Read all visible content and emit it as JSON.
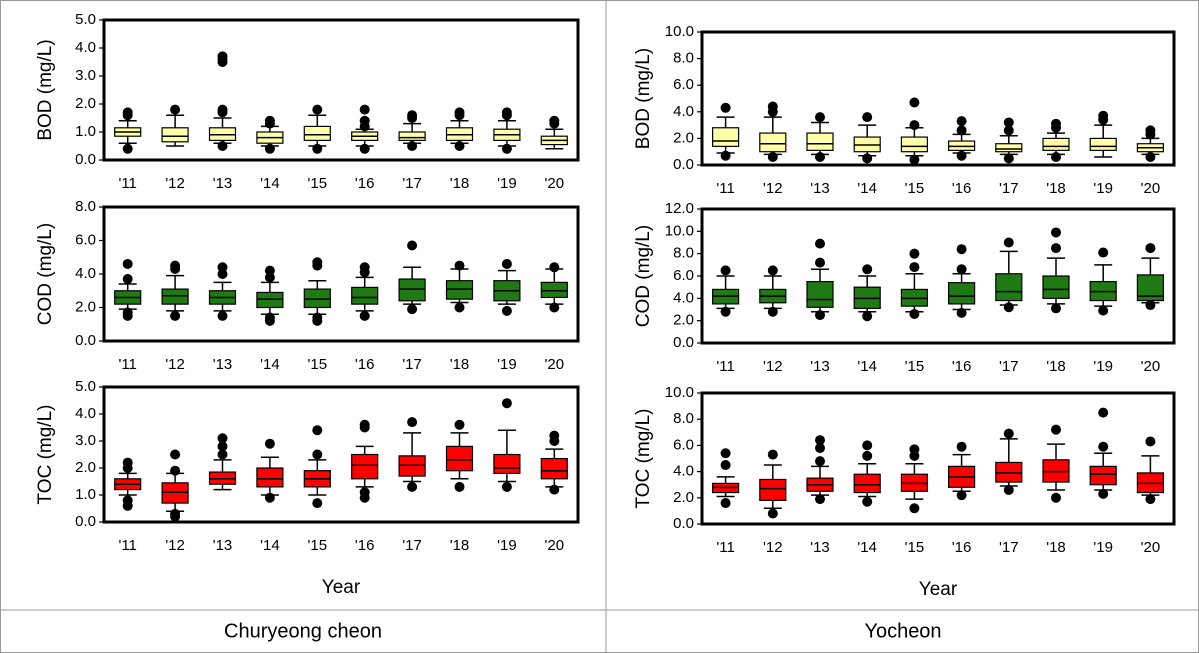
{
  "chart_data": [
    {
      "type": "box",
      "ylabel": "BOD (mg/L)",
      "color": "#ffffa8",
      "ylim": [
        0,
        5
      ],
      "yticks": [
        {
          "value": 0,
          "label": "0.0"
        },
        {
          "value": 1,
          "label": "1.0"
        },
        {
          "value": 2,
          "label": "2.0"
        },
        {
          "value": 3,
          "label": "3.0"
        },
        {
          "value": 4,
          "label": "4.0"
        },
        {
          "value": 5,
          "label": "5.0"
        }
      ],
      "categories": [
        "'11",
        "'12",
        "'13",
        "'14",
        "'15",
        "'16",
        "'17",
        "'18",
        "'19",
        "'20"
      ],
      "boxes": [
        {
          "whislo": 0.6,
          "q1": 0.85,
          "med": 1.0,
          "q3": 1.15,
          "whishi": 1.4,
          "fliers": [
            0.4,
            1.6,
            1.7
          ]
        },
        {
          "whislo": 0.5,
          "q1": 0.65,
          "med": 0.85,
          "q3": 1.15,
          "whishi": 1.6,
          "fliers": [
            1.8
          ]
        },
        {
          "whislo": 0.6,
          "q1": 0.7,
          "med": 0.9,
          "q3": 1.15,
          "whishi": 1.5,
          "fliers": [
            0.5,
            1.7,
            1.8,
            3.5,
            3.6,
            3.7
          ]
        },
        {
          "whislo": 0.5,
          "q1": 0.6,
          "med": 0.8,
          "q3": 1.0,
          "whishi": 1.2,
          "fliers": [
            0.4,
            1.3,
            1.4
          ]
        },
        {
          "whislo": 0.5,
          "q1": 0.7,
          "med": 0.9,
          "q3": 1.2,
          "whishi": 1.6,
          "fliers": [
            0.4,
            1.8
          ]
        },
        {
          "whislo": 0.5,
          "q1": 0.7,
          "med": 0.85,
          "q3": 1.0,
          "whishi": 1.1,
          "fliers": [
            0.4,
            1.2,
            1.4,
            1.8
          ]
        },
        {
          "whislo": 0.6,
          "q1": 0.7,
          "med": 0.8,
          "q3": 1.0,
          "whishi": 1.3,
          "fliers": [
            0.5,
            1.5,
            1.6
          ]
        },
        {
          "whislo": 0.6,
          "q1": 0.7,
          "med": 0.9,
          "q3": 1.15,
          "whishi": 1.4,
          "fliers": [
            0.5,
            1.6,
            1.7
          ]
        },
        {
          "whislo": 0.5,
          "q1": 0.7,
          "med": 0.9,
          "q3": 1.1,
          "whishi": 1.4,
          "fliers": [
            0.4,
            1.6,
            1.7
          ]
        },
        {
          "whislo": 0.4,
          "q1": 0.55,
          "med": 0.7,
          "q3": 0.85,
          "whishi": 1.1,
          "fliers": [
            1.3,
            1.4
          ]
        }
      ]
    },
    {
      "type": "box",
      "ylabel": "COD (mg/L)",
      "color": "#1f7a14",
      "ylim": [
        0,
        8
      ],
      "yticks": [
        {
          "value": 0,
          "label": "0.0"
        },
        {
          "value": 2,
          "label": "2.0"
        },
        {
          "value": 4,
          "label": "4.0"
        },
        {
          "value": 6,
          "label": "6.0"
        },
        {
          "value": 8,
          "label": "8.0"
        }
      ],
      "categories": [
        "'11",
        "'12",
        "'13",
        "'14",
        "'15",
        "'16",
        "'17",
        "'18",
        "'19",
        "'20"
      ],
      "boxes": [
        {
          "whislo": 1.9,
          "q1": 2.2,
          "med": 2.6,
          "q3": 3.0,
          "whishi": 3.4,
          "fliers": [
            1.5,
            1.7,
            3.7,
            4.6
          ]
        },
        {
          "whislo": 1.8,
          "q1": 2.2,
          "med": 2.7,
          "q3": 3.1,
          "whishi": 3.9,
          "fliers": [
            1.5,
            4.3,
            4.5
          ]
        },
        {
          "whislo": 1.8,
          "q1": 2.2,
          "med": 2.6,
          "q3": 3.0,
          "whishi": 3.5,
          "fliers": [
            1.5,
            4.0,
            4.4
          ]
        },
        {
          "whislo": 1.6,
          "q1": 2.0,
          "med": 2.5,
          "q3": 2.9,
          "whishi": 3.5,
          "fliers": [
            1.2,
            1.4,
            3.8,
            4.2
          ]
        },
        {
          "whislo": 1.6,
          "q1": 2.0,
          "med": 2.5,
          "q3": 3.1,
          "whishi": 3.6,
          "fliers": [
            1.2,
            1.4,
            4.5,
            4.7
          ]
        },
        {
          "whislo": 1.8,
          "q1": 2.2,
          "med": 2.6,
          "q3": 3.2,
          "whishi": 3.8,
          "fliers": [
            1.5,
            4.1,
            4.4
          ]
        },
        {
          "whislo": 2.2,
          "q1": 2.4,
          "med": 3.1,
          "q3": 3.7,
          "whishi": 4.4,
          "fliers": [
            1.9,
            5.7
          ]
        },
        {
          "whislo": 2.3,
          "q1": 2.5,
          "med": 3.1,
          "q3": 3.6,
          "whishi": 4.3,
          "fliers": [
            2.0,
            4.5
          ]
        },
        {
          "whislo": 2.2,
          "q1": 2.4,
          "med": 3.0,
          "q3": 3.6,
          "whishi": 4.2,
          "fliers": [
            1.8,
            4.6
          ]
        },
        {
          "whislo": 2.2,
          "q1": 2.6,
          "med": 3.0,
          "q3": 3.5,
          "whishi": 4.3,
          "fliers": [
            2.0,
            4.4
          ]
        }
      ]
    },
    {
      "type": "box",
      "ylabel": "TOC (mg/L)",
      "xlabel": "Year",
      "color": "#ff0000",
      "ylim": [
        0,
        5
      ],
      "yticks": [
        {
          "value": 0,
          "label": "0.0"
        },
        {
          "value": 1,
          "label": "1.0"
        },
        {
          "value": 2,
          "label": "2.0"
        },
        {
          "value": 3,
          "label": "3.0"
        },
        {
          "value": 4,
          "label": "4.0"
        },
        {
          "value": 5,
          "label": "5.0"
        }
      ],
      "categories": [
        "'11",
        "'12",
        "'13",
        "'14",
        "'15",
        "'16",
        "'17",
        "'18",
        "'19",
        "'20"
      ],
      "boxes": [
        {
          "whislo": 1.0,
          "q1": 1.2,
          "med": 1.4,
          "q3": 1.6,
          "whishi": 1.8,
          "fliers": [
            0.6,
            0.8,
            2.0,
            2.2
          ]
        },
        {
          "whislo": 0.4,
          "q1": 0.7,
          "med": 1.1,
          "q3": 1.45,
          "whishi": 1.8,
          "fliers": [
            0.2,
            0.3,
            1.9,
            2.5
          ]
        },
        {
          "whislo": 1.2,
          "q1": 1.4,
          "med": 1.6,
          "q3": 1.85,
          "whishi": 2.3,
          "fliers": [
            2.5,
            2.8,
            3.1
          ]
        },
        {
          "whislo": 1.0,
          "q1": 1.3,
          "med": 1.6,
          "q3": 2.0,
          "whishi": 2.4,
          "fliers": [
            0.9,
            2.9
          ]
        },
        {
          "whislo": 1.0,
          "q1": 1.3,
          "med": 1.6,
          "q3": 1.9,
          "whishi": 2.3,
          "fliers": [
            0.7,
            2.5,
            3.4
          ]
        },
        {
          "whislo": 1.3,
          "q1": 1.6,
          "med": 2.1,
          "q3": 2.5,
          "whishi": 2.8,
          "fliers": [
            0.9,
            1.1,
            3.5,
            3.6
          ]
        },
        {
          "whislo": 1.5,
          "q1": 1.7,
          "med": 2.1,
          "q3": 2.45,
          "whishi": 3.3,
          "fliers": [
            1.3,
            3.7
          ]
        },
        {
          "whislo": 1.6,
          "q1": 1.9,
          "med": 2.3,
          "q3": 2.8,
          "whishi": 3.3,
          "fliers": [
            1.3,
            3.6
          ]
        },
        {
          "whislo": 1.5,
          "q1": 1.8,
          "med": 2.0,
          "q3": 2.5,
          "whishi": 3.4,
          "fliers": [
            1.3,
            4.4
          ]
        },
        {
          "whislo": 1.3,
          "q1": 1.6,
          "med": 1.9,
          "q3": 2.35,
          "whishi": 2.7,
          "fliers": [
            1.2,
            3.0,
            3.2
          ]
        }
      ]
    },
    {
      "type": "box",
      "ylabel": "BOD (mg/L)",
      "color": "#ffffa8",
      "ylim": [
        0,
        10
      ],
      "yticks": [
        {
          "value": 0,
          "label": "0.0"
        },
        {
          "value": 2,
          "label": "2.0"
        },
        {
          "value": 4,
          "label": "4.0"
        },
        {
          "value": 6,
          "label": "6.0"
        },
        {
          "value": 8,
          "label": "8.0"
        },
        {
          "value": 10,
          "label": "10.0"
        }
      ],
      "categories": [
        "'11",
        "'12",
        "'13",
        "'14",
        "'15",
        "'16",
        "'17",
        "'18",
        "'19",
        "'20"
      ],
      "boxes": [
        {
          "whislo": 0.9,
          "q1": 1.4,
          "med": 1.8,
          "q3": 2.8,
          "whishi": 3.6,
          "fliers": [
            0.7,
            4.3
          ]
        },
        {
          "whislo": 0.8,
          "q1": 1.0,
          "med": 1.6,
          "q3": 2.4,
          "whishi": 3.6,
          "fliers": [
            0.6,
            4.0,
            4.4
          ]
        },
        {
          "whislo": 0.8,
          "q1": 1.1,
          "med": 1.6,
          "q3": 2.4,
          "whishi": 3.2,
          "fliers": [
            0.6,
            3.6
          ]
        },
        {
          "whislo": 0.7,
          "q1": 1.0,
          "med": 1.5,
          "q3": 2.1,
          "whishi": 3.0,
          "fliers": [
            0.5,
            3.6
          ]
        },
        {
          "whislo": 0.7,
          "q1": 1.0,
          "med": 1.4,
          "q3": 2.1,
          "whishi": 2.8,
          "fliers": [
            0.4,
            3.0,
            4.7
          ]
        },
        {
          "whislo": 0.9,
          "q1": 1.1,
          "med": 1.4,
          "q3": 1.8,
          "whishi": 2.3,
          "fliers": [
            0.7,
            2.6,
            3.3
          ]
        },
        {
          "whislo": 0.8,
          "q1": 1.0,
          "med": 1.2,
          "q3": 1.6,
          "whishi": 2.2,
          "fliers": [
            0.5,
            2.6,
            3.2
          ]
        },
        {
          "whislo": 0.8,
          "q1": 1.1,
          "med": 1.4,
          "q3": 2.0,
          "whishi": 2.4,
          "fliers": [
            0.6,
            2.8,
            3.1
          ]
        },
        {
          "whislo": 0.6,
          "q1": 1.1,
          "med": 1.4,
          "q3": 2.0,
          "whishi": 3.0,
          "fliers": [
            3.4,
            3.7
          ]
        },
        {
          "whislo": 0.8,
          "q1": 1.0,
          "med": 1.3,
          "q3": 1.6,
          "whishi": 2.0,
          "fliers": [
            0.6,
            2.3,
            2.6
          ]
        }
      ]
    },
    {
      "type": "box",
      "ylabel": "COD (mg/L)",
      "color": "#1f7a14",
      "ylim": [
        0,
        12
      ],
      "yticks": [
        {
          "value": 0,
          "label": "0.0"
        },
        {
          "value": 2,
          "label": "2.0"
        },
        {
          "value": 4,
          "label": "4.0"
        },
        {
          "value": 6,
          "label": "6.0"
        },
        {
          "value": 8,
          "label": "8.0"
        },
        {
          "value": 10,
          "label": "10.0"
        },
        {
          "value": 12,
          "label": "12.0"
        }
      ],
      "categories": [
        "'11",
        "'12",
        "'13",
        "'14",
        "'15",
        "'16",
        "'17",
        "'18",
        "'19",
        "'20"
      ],
      "boxes": [
        {
          "whislo": 3.1,
          "q1": 3.5,
          "med": 4.2,
          "q3": 4.8,
          "whishi": 6.0,
          "fliers": [
            2.8,
            6.5
          ]
        },
        {
          "whislo": 3.1,
          "q1": 3.6,
          "med": 4.2,
          "q3": 4.8,
          "whishi": 6.0,
          "fliers": [
            2.8,
            6.5
          ]
        },
        {
          "whislo": 2.8,
          "q1": 3.2,
          "med": 3.9,
          "q3": 5.5,
          "whishi": 6.6,
          "fliers": [
            2.5,
            7.2,
            8.9
          ]
        },
        {
          "whislo": 2.8,
          "q1": 3.1,
          "med": 4.0,
          "q3": 5.0,
          "whishi": 6.0,
          "fliers": [
            2.4,
            6.6
          ]
        },
        {
          "whislo": 2.8,
          "q1": 3.3,
          "med": 4.0,
          "q3": 4.8,
          "whishi": 6.2,
          "fliers": [
            2.6,
            6.8,
            8.0
          ]
        },
        {
          "whislo": 3.0,
          "q1": 3.5,
          "med": 4.2,
          "q3": 5.4,
          "whishi": 6.2,
          "fliers": [
            2.7,
            6.6,
            8.4
          ]
        },
        {
          "whislo": 3.4,
          "q1": 3.8,
          "med": 4.6,
          "q3": 6.2,
          "whishi": 8.2,
          "fliers": [
            3.2,
            9.0
          ]
        },
        {
          "whislo": 3.5,
          "q1": 4.0,
          "med": 4.8,
          "q3": 6.0,
          "whishi": 7.6,
          "fliers": [
            3.1,
            8.5,
            9.9
          ]
        },
        {
          "whislo": 3.3,
          "q1": 3.8,
          "med": 4.6,
          "q3": 5.5,
          "whishi": 7.0,
          "fliers": [
            2.9,
            8.1
          ]
        },
        {
          "whislo": 3.6,
          "q1": 3.8,
          "med": 4.2,
          "q3": 6.1,
          "whishi": 7.6,
          "fliers": [
            3.4,
            8.5
          ]
        }
      ]
    },
    {
      "type": "box",
      "ylabel": "TOC (mg/L)",
      "xlabel": "Year",
      "color": "#ff0000",
      "ylim": [
        0,
        10
      ],
      "yticks": [
        {
          "value": 0,
          "label": "0.0"
        },
        {
          "value": 2,
          "label": "2.0"
        },
        {
          "value": 4,
          "label": "4.0"
        },
        {
          "value": 6,
          "label": "6.0"
        },
        {
          "value": 8,
          "label": "8.0"
        },
        {
          "value": 10,
          "label": "10.0"
        }
      ],
      "categories": [
        "'11",
        "'12",
        "'13",
        "'14",
        "'15",
        "'16",
        "'17",
        "'18",
        "'19",
        "'20"
      ],
      "boxes": [
        {
          "whislo": 2.1,
          "q1": 2.4,
          "med": 2.8,
          "q3": 3.1,
          "whishi": 3.6,
          "fliers": [
            1.6,
            4.5,
            5.4
          ]
        },
        {
          "whislo": 1.2,
          "q1": 1.8,
          "med": 2.7,
          "q3": 3.4,
          "whishi": 4.5,
          "fliers": [
            0.8,
            5.3
          ]
        },
        {
          "whislo": 2.2,
          "q1": 2.5,
          "med": 3.0,
          "q3": 3.5,
          "whishi": 4.4,
          "fliers": [
            1.9,
            4.8,
            5.8,
            6.4
          ]
        },
        {
          "whislo": 2.1,
          "q1": 2.4,
          "med": 3.0,
          "q3": 3.8,
          "whishi": 4.6,
          "fliers": [
            1.7,
            5.2,
            6.0
          ]
        },
        {
          "whislo": 1.9,
          "q1": 2.5,
          "med": 3.1,
          "q3": 3.8,
          "whishi": 4.6,
          "fliers": [
            1.2,
            5.2,
            5.7
          ]
        },
        {
          "whislo": 2.5,
          "q1": 2.8,
          "med": 3.6,
          "q3": 4.4,
          "whishi": 5.3,
          "fliers": [
            2.2,
            5.9
          ]
        },
        {
          "whislo": 2.9,
          "q1": 3.2,
          "med": 3.9,
          "q3": 4.7,
          "whishi": 6.5,
          "fliers": [
            2.6,
            6.9
          ]
        },
        {
          "whislo": 2.6,
          "q1": 3.2,
          "med": 4.0,
          "q3": 4.9,
          "whishi": 6.1,
          "fliers": [
            2.0,
            7.2
          ]
        },
        {
          "whislo": 2.6,
          "q1": 3.0,
          "med": 3.8,
          "q3": 4.4,
          "whishi": 5.4,
          "fliers": [
            2.3,
            5.9,
            8.5
          ]
        },
        {
          "whislo": 2.2,
          "q1": 2.4,
          "med": 3.1,
          "q3": 3.9,
          "whishi": 5.2,
          "fliers": [
            1.9,
            6.3
          ]
        }
      ]
    }
  ],
  "captions": [
    "Churyeong cheon",
    "Yocheon"
  ]
}
